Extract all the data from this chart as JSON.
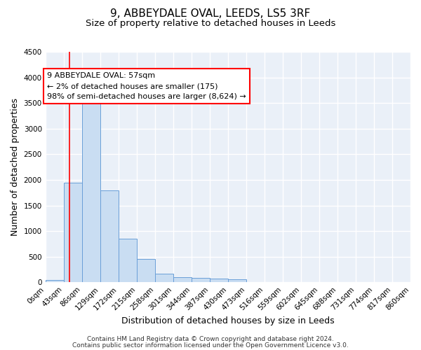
{
  "title": "9, ABBEYDALE OVAL, LEEDS, LS5 3RF",
  "subtitle": "Size of property relative to detached houses in Leeds",
  "xlabel": "Distribution of detached houses by size in Leeds",
  "ylabel": "Number of detached properties",
  "bar_color": "#c9ddf2",
  "bar_edge_color": "#6a9fd8",
  "background_color": "#eaf0f8",
  "grid_color": "#ffffff",
  "annotation_text": "9 ABBEYDALE OVAL: 57sqm\n← 2% of detached houses are smaller (175)\n98% of semi-detached houses are larger (8,624) →",
  "property_line_x": 57,
  "bin_edges": [
    0,
    43,
    86,
    129,
    172,
    215,
    258,
    301,
    344,
    387,
    430,
    473,
    516,
    559,
    602,
    645,
    688,
    731,
    774,
    817,
    860
  ],
  "categories": [
    "0sqm",
    "43sqm",
    "86sqm",
    "129sqm",
    "172sqm",
    "215sqm",
    "258sqm",
    "301sqm",
    "344sqm",
    "387sqm",
    "430sqm",
    "473sqm",
    "516sqm",
    "559sqm",
    "602sqm",
    "645sqm",
    "688sqm",
    "731sqm",
    "774sqm",
    "817sqm",
    "860sqm"
  ],
  "values": [
    50,
    1950,
    3500,
    1800,
    850,
    450,
    175,
    100,
    80,
    70,
    55,
    0,
    0,
    0,
    0,
    0,
    0,
    0,
    0,
    0
  ],
  "ylim": [
    0,
    4500
  ],
  "yticks": [
    0,
    500,
    1000,
    1500,
    2000,
    2500,
    3000,
    3500,
    4000,
    4500
  ],
  "footnote1": "Contains HM Land Registry data © Crown copyright and database right 2024.",
  "footnote2": "Contains public sector information licensed under the Open Government Licence v3.0.",
  "title_fontsize": 11,
  "subtitle_fontsize": 9.5,
  "axis_label_fontsize": 9,
  "tick_fontsize": 7.5,
  "footnote_fontsize": 6.5,
  "ann_fontsize": 8
}
